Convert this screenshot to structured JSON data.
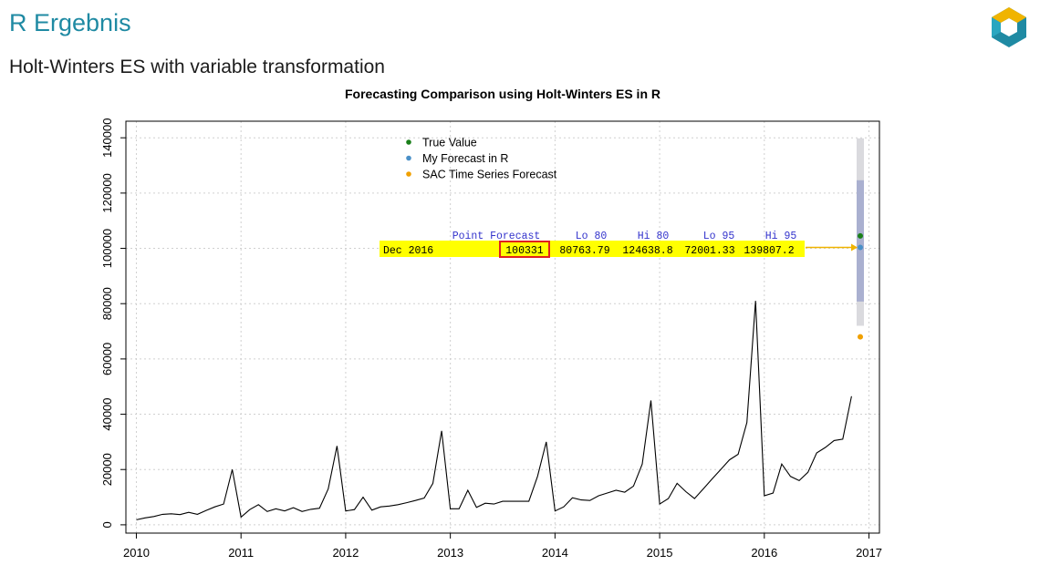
{
  "slide": {
    "title": "R Ergebnis",
    "subtitle": "Holt-Winters ES with variable transformation"
  },
  "colors": {
    "title_accent": "#1f8aa3",
    "highlight": "#ffff00",
    "arrow": "#f0b400",
    "box": "#e02020",
    "header_text": "#3333cc",
    "band80": "#aab0d0",
    "band95": "#dadade",
    "line": "#000000",
    "logo_teal": "#1f8aa3",
    "logo_gold": "#f0b400"
  },
  "chart_data": {
    "type": "line",
    "title": "Forecasting Comparison using Holt-Winters ES in R",
    "xlabel": "",
    "ylabel": "",
    "xlim": [
      2009.9,
      2017.1
    ],
    "ylim": [
      -3000,
      146000
    ],
    "grid": true,
    "legend_position": "top-center",
    "x_ticks": [
      "2010",
      "2011",
      "2012",
      "2013",
      "2014",
      "2015",
      "2016",
      "2017"
    ],
    "y_ticks": [
      "0",
      "20000",
      "40000",
      "60000",
      "80000",
      "100000",
      "120000",
      "140000"
    ],
    "series": [
      {
        "start": 2010,
        "frequency": 12,
        "values": [
          1800,
          2500,
          3000,
          3800,
          4000,
          3700,
          4500,
          3800,
          5200,
          6500,
          7500,
          20000,
          2800,
          5500,
          7300,
          4800,
          5800,
          5000,
          6200,
          4800,
          5600,
          6000,
          13000,
          28500,
          5000,
          5500,
          10000,
          5300,
          6500,
          6800,
          7300,
          8000,
          8800,
          9700,
          15000,
          34000,
          5800,
          5800,
          12500,
          6300,
          7800,
          7500,
          8500,
          8500,
          8500,
          8500,
          17500,
          30000,
          5000,
          6500,
          9800,
          9000,
          8800,
          10500,
          11500,
          12500,
          11800,
          14000,
          22000,
          45000,
          7500,
          9500,
          15000,
          12000,
          9500,
          13000,
          16500,
          20000,
          23500,
          25500,
          37000,
          81000,
          10500,
          11500,
          22000,
          17500,
          16000,
          19000,
          26000,
          28000,
          30500,
          31000,
          46500
        ]
      }
    ],
    "forecast": {
      "x": 2016.917,
      "point": 100331,
      "lo80": 80763.79,
      "hi80": 124638.8,
      "lo95": 72001.33,
      "hi95": 139807.2,
      "true_value": 104500,
      "sac_forecast": 68000
    },
    "legend": [
      {
        "label": "True Value",
        "color": "#1a7f1a"
      },
      {
        "label": "My Forecast in R",
        "color": "#4a90c8"
      },
      {
        "label": "SAC Time Series Forecast",
        "color": "#f0a000"
      }
    ],
    "annotation": {
      "header": [
        "Point Forecast",
        "Lo 80",
        "Hi 80",
        "Lo 95",
        "Hi 95"
      ],
      "row_label": "Dec 2016",
      "row_values": [
        "100331",
        "80763.79",
        "124638.8",
        "72001.33",
        "139807.2"
      ]
    }
  }
}
